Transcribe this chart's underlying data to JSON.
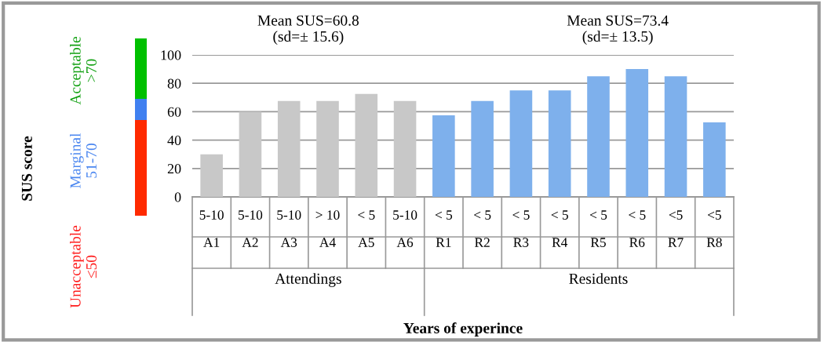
{
  "chart_data": {
    "type": "bar",
    "categories": [
      "5-10\nA1",
      "5-10\nA2",
      "5-10\nA3",
      "> 10\nA4",
      "< 5\nA5",
      "5-10\nA6",
      "< 5\nR1",
      "< 5\nR2",
      "< 5\nR3",
      "< 5\nR4",
      "< 5\nR5",
      "< 5\nR6",
      "<5\nR7",
      "<5\nR8"
    ],
    "values": [
      30,
      60,
      67.5,
      67.5,
      72.5,
      67.5,
      57.5,
      67.5,
      75,
      75,
      85,
      90,
      85,
      52.5
    ],
    "colors": [
      "#c8c8c8",
      "#c8c8c8",
      "#c8c8c8",
      "#c8c8c8",
      "#c8c8c8",
      "#c8c8c8",
      "#7eb0ec",
      "#7eb0ec",
      "#7eb0ec",
      "#7eb0ec",
      "#7eb0ec",
      "#7eb0ec",
      "#7eb0ec",
      "#7eb0ec"
    ],
    "ylim": [
      0,
      100
    ],
    "yticks": [
      0,
      20,
      40,
      60,
      80,
      100
    ],
    "grid": "y",
    "annotations": [
      "Mean SUS=60.8\n(sd=± 15.6)",
      "Mean SUS=73.4\n(sd=± 13.5)",
      "Attendings",
      "Residents",
      "Unacceptable\n≤50",
      "Marginal\n51-70",
      "Acceptable\n>70",
      "SUS score",
      "Years of experince"
    ]
  }
}
